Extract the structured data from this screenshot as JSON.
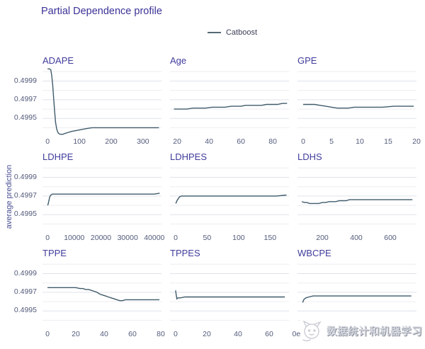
{
  "title": "Partial Dependence profile",
  "legend": {
    "label": "Catboost"
  },
  "ylabel": "average prediction",
  "watermark": {
    "text": "数据统计和机器学习",
    "icon": "cat-face-icon"
  },
  "colors": {
    "line": "#3f5b6b",
    "title": "#3b3297",
    "panel_title": "#403c9c",
    "tick": "#525a7a",
    "grid_minor": "#ededf2",
    "grid_major": "#e0e2ea",
    "watermark": "#d3d6dd"
  },
  "chart_data": {
    "type": "line",
    "title": "Partial Dependence profile",
    "series_name": "Catboost",
    "ylabel": "average prediction",
    "legend_position": "top-center",
    "grid": true,
    "ylim": [
      0.49932,
      0.50004
    ],
    "yticks": [
      0.4995,
      0.4997,
      0.4999
    ],
    "grid_values": [
      0.4994,
      0.4995,
      0.4996,
      0.4997,
      0.4998,
      0.4999,
      0.5
    ],
    "panels": [
      {
        "title": "ADAPE",
        "xlim": [
          -16,
          358
        ],
        "xticks": [
          {
            "v": 0,
            "label": "0"
          },
          {
            "v": 100,
            "label": "100"
          },
          {
            "v": 200,
            "label": "200"
          },
          {
            "v": 300,
            "label": "300"
          }
        ],
        "points": [
          [
            0,
            0.50003
          ],
          [
            6,
            0.50003
          ],
          [
            10,
            0.50002
          ],
          [
            13,
            0.49996
          ],
          [
            16,
            0.49986
          ],
          [
            19,
            0.49972
          ],
          [
            22,
            0.49958
          ],
          [
            25,
            0.49946
          ],
          [
            29,
            0.49938
          ],
          [
            34,
            0.49934
          ],
          [
            40,
            0.49933
          ],
          [
            48,
            0.49933
          ],
          [
            55,
            0.49934
          ],
          [
            65,
            0.49935
          ],
          [
            75,
            0.49936
          ],
          [
            90,
            0.49937
          ],
          [
            105,
            0.49938
          ],
          [
            120,
            0.49939
          ],
          [
            140,
            0.4994
          ],
          [
            170,
            0.4994
          ],
          [
            200,
            0.4994
          ],
          [
            250,
            0.4994
          ],
          [
            300,
            0.4994
          ],
          [
            350,
            0.4994
          ]
        ]
      },
      {
        "title": "Age",
        "xlim": [
          15.5,
          90.2
        ],
        "xticks": [
          {
            "v": 20,
            "label": "20"
          },
          {
            "v": 40,
            "label": "40"
          },
          {
            "v": 60,
            "label": "60"
          },
          {
            "v": 80,
            "label": "80"
          }
        ],
        "points": [
          [
            18,
            0.4996
          ],
          [
            22,
            0.4996
          ],
          [
            26,
            0.4996
          ],
          [
            30,
            0.49961
          ],
          [
            34,
            0.49961
          ],
          [
            38,
            0.49961
          ],
          [
            42,
            0.49962
          ],
          [
            46,
            0.49962
          ],
          [
            50,
            0.49962
          ],
          [
            54,
            0.49963
          ],
          [
            57,
            0.49963
          ],
          [
            60,
            0.49963
          ],
          [
            63,
            0.49964
          ],
          [
            66,
            0.49964
          ],
          [
            70,
            0.49964
          ],
          [
            73,
            0.49964
          ],
          [
            76,
            0.49965
          ],
          [
            80,
            0.49965
          ],
          [
            83,
            0.49965
          ],
          [
            86,
            0.49966
          ],
          [
            89,
            0.49966
          ]
        ]
      },
      {
        "title": "GPE",
        "xlim": [
          -1,
          20
        ],
        "xticks": [
          {
            "v": 0,
            "label": "0"
          },
          {
            "v": 5,
            "label": "5"
          },
          {
            "v": 10,
            "label": "10"
          },
          {
            "v": 15,
            "label": "15"
          },
          {
            "v": 20,
            "label": "20"
          }
        ],
        "points": [
          [
            0,
            0.49965
          ],
          [
            1,
            0.49965
          ],
          [
            2,
            0.49965
          ],
          [
            3,
            0.49964
          ],
          [
            4,
            0.49963
          ],
          [
            5,
            0.49962
          ],
          [
            6,
            0.49961
          ],
          [
            7,
            0.49961
          ],
          [
            8,
            0.49961
          ],
          [
            9,
            0.49962
          ],
          [
            10,
            0.49962
          ],
          [
            12,
            0.49962
          ],
          [
            14,
            0.49962
          ],
          [
            16,
            0.49963
          ],
          [
            18,
            0.49963
          ],
          [
            19.5,
            0.49963
          ]
        ]
      },
      {
        "title": "LDHPE",
        "xlim": [
          -1900,
          42700
        ],
        "xticks": [
          {
            "v": 0,
            "label": "0"
          },
          {
            "v": 10000,
            "label": "10000"
          },
          {
            "v": 20000,
            "label": "20000"
          },
          {
            "v": 30000,
            "label": "30000"
          },
          {
            "v": 40000,
            "label": "40000"
          }
        ],
        "points": [
          [
            0,
            0.4996
          ],
          [
            200,
            0.49961
          ],
          [
            500,
            0.49965
          ],
          [
            800,
            0.49969
          ],
          [
            1200,
            0.49971
          ],
          [
            1800,
            0.49972
          ],
          [
            3000,
            0.49972
          ],
          [
            6000,
            0.49972
          ],
          [
            10000,
            0.49972
          ],
          [
            15000,
            0.49972
          ],
          [
            20000,
            0.49972
          ],
          [
            25000,
            0.49972
          ],
          [
            30000,
            0.49972
          ],
          [
            35000,
            0.49972
          ],
          [
            40000,
            0.49972
          ],
          [
            42000,
            0.49973
          ]
        ]
      },
      {
        "title": "LDHPES",
        "xlim": [
          -9,
          180
        ],
        "xticks": [
          {
            "v": 0,
            "label": "0"
          },
          {
            "v": 50,
            "label": "50"
          },
          {
            "v": 100,
            "label": "100"
          },
          {
            "v": 150,
            "label": "150"
          }
        ],
        "points": [
          [
            0,
            0.49962
          ],
          [
            1,
            0.49963
          ],
          [
            2,
            0.49965
          ],
          [
            4,
            0.49967
          ],
          [
            6,
            0.49969
          ],
          [
            9,
            0.4997
          ],
          [
            12,
            0.4997
          ],
          [
            20,
            0.4997
          ],
          [
            40,
            0.4997
          ],
          [
            70,
            0.4997
          ],
          [
            100,
            0.4997
          ],
          [
            130,
            0.4997
          ],
          [
            160,
            0.4997
          ],
          [
            176,
            0.49971
          ]
        ]
      },
      {
        "title": "LDHS",
        "xlim": [
          54,
          754
        ],
        "xticks": [
          {
            "v": 200,
            "label": "200"
          },
          {
            "v": 400,
            "label": "400"
          },
          {
            "v": 600,
            "label": "600"
          }
        ],
        "points": [
          [
            80,
            0.49964
          ],
          [
            95,
            0.49963
          ],
          [
            110,
            0.49963
          ],
          [
            125,
            0.49962
          ],
          [
            140,
            0.49962
          ],
          [
            160,
            0.49962
          ],
          [
            180,
            0.49962
          ],
          [
            200,
            0.49963
          ],
          [
            220,
            0.49963
          ],
          [
            240,
            0.49964
          ],
          [
            260,
            0.49964
          ],
          [
            280,
            0.49964
          ],
          [
            300,
            0.49965
          ],
          [
            320,
            0.49965
          ],
          [
            340,
            0.49965
          ],
          [
            360,
            0.49966
          ],
          [
            390,
            0.49966
          ],
          [
            420,
            0.49966
          ],
          [
            460,
            0.49966
          ],
          [
            520,
            0.49966
          ],
          [
            580,
            0.49966
          ],
          [
            650,
            0.49966
          ],
          [
            730,
            0.49966
          ]
        ]
      },
      {
        "title": "TPPE",
        "xlim": [
          -3.5,
          80.5
        ],
        "xticks": [
          {
            "v": 0,
            "label": "0"
          },
          {
            "v": 20,
            "label": "20"
          },
          {
            "v": 40,
            "label": "40"
          },
          {
            "v": 60,
            "label": "60"
          },
          {
            "v": 80,
            "label": "80"
          }
        ],
        "points": [
          [
            0,
            0.49975
          ],
          [
            4,
            0.49975
          ],
          [
            8,
            0.49975
          ],
          [
            12,
            0.49975
          ],
          [
            16,
            0.49975
          ],
          [
            20,
            0.49975
          ],
          [
            23,
            0.49974
          ],
          [
            25,
            0.49974
          ],
          [
            27,
            0.49973
          ],
          [
            29,
            0.49973
          ],
          [
            31,
            0.49972
          ],
          [
            33,
            0.49971
          ],
          [
            35,
            0.4997
          ],
          [
            37,
            0.49968
          ],
          [
            39,
            0.49967
          ],
          [
            41,
            0.49966
          ],
          [
            43,
            0.49965
          ],
          [
            45,
            0.49964
          ],
          [
            47,
            0.49963
          ],
          [
            49,
            0.49962
          ],
          [
            51,
            0.49961
          ],
          [
            53,
            0.49961
          ],
          [
            55,
            0.49962
          ],
          [
            58,
            0.49962
          ],
          [
            62,
            0.49962
          ],
          [
            66,
            0.49962
          ],
          [
            70,
            0.49962
          ],
          [
            75,
            0.49962
          ],
          [
            79,
            0.49962
          ]
        ]
      },
      {
        "title": "TPPES",
        "xlim": [
          -3.6,
          72.7
        ],
        "xticks": [
          {
            "v": 0,
            "label": "0"
          },
          {
            "v": 20,
            "label": "20"
          },
          {
            "v": 40,
            "label": "40"
          },
          {
            "v": 60,
            "label": "60"
          }
        ],
        "points": [
          [
            0,
            0.49972
          ],
          [
            0.4,
            0.49967
          ],
          [
            0.8,
            0.49963
          ],
          [
            1.5,
            0.49964
          ],
          [
            3,
            0.49964
          ],
          [
            6,
            0.49965
          ],
          [
            10,
            0.49965
          ],
          [
            20,
            0.49965
          ],
          [
            30,
            0.49965
          ],
          [
            45,
            0.49965
          ],
          [
            60,
            0.49965
          ],
          [
            70,
            0.49965
          ]
        ]
      },
      {
        "title": "WBCPE",
        "xlim": [
          -0.05,
          1.1
        ],
        "xticks": [
          {
            "v": 0,
            "label": "0e+00"
          }
        ],
        "points": [
          [
            0,
            0.49959
          ],
          [
            0.01,
            0.49962
          ],
          [
            0.03,
            0.49964
          ],
          [
            0.06,
            0.49965
          ],
          [
            0.1,
            0.49966
          ],
          [
            0.2,
            0.49966
          ],
          [
            0.4,
            0.49966
          ],
          [
            0.6,
            0.49966
          ],
          [
            0.8,
            0.49966
          ],
          [
            1.05,
            0.49966
          ]
        ]
      }
    ]
  }
}
